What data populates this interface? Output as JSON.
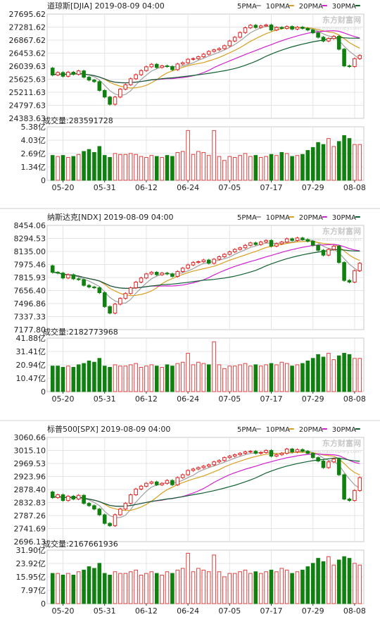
{
  "watermark": "东方财富网 www.eastmoney.com",
  "colors": {
    "up": "#e02020",
    "down": "#108010",
    "volume_up": "#e04040",
    "volume_down": "#108010",
    "ma5": "#a0a0a0",
    "ma10": "#d8a020",
    "ma20": "#d020d0",
    "ma30": "#106030",
    "grid": "#e4e4e4",
    "axis": "#404040",
    "text": "#222222",
    "frame": "#c8c8c8"
  },
  "chart_data": [
    {
      "type": "candlestick",
      "title": "道琼斯[DJIA] 2019-08-09 04:00",
      "legend": [
        {
          "name": "5PMA",
          "color": "#a0a0a0"
        },
        {
          "name": "10PMA",
          "color": "#d8a020"
        },
        {
          "name": "20PMA",
          "color": "#d020d0"
        },
        {
          "name": "30PMA",
          "color": "#106030"
        }
      ],
      "yticks": [
        "27695.62",
        "27281.62",
        "26867.62",
        "26453.62",
        "26039.63",
        "25625.63",
        "25211.63",
        "24797.63",
        "24383.63"
      ],
      "ylim": [
        24383.63,
        27695.62
      ],
      "volume_label": "成交量:283591728",
      "volume_yticks": [
        "5.38亿",
        "4.03亿",
        "2.69亿",
        "1.34亿",
        "0"
      ],
      "volume_ylim": [
        0,
        5.38
      ],
      "xticks": [
        "05-20",
        "05-31",
        "06-12",
        "06-24",
        "07-05",
        "07-17",
        "07-29",
        "08-08"
      ],
      "xtick_index": [
        2,
        10,
        18,
        26,
        34,
        42,
        50,
        58
      ],
      "start": 25980,
      "closes": [
        25760,
        25840,
        25720,
        25850,
        25780,
        25890,
        25690,
        25600,
        25550,
        25270,
        25060,
        24830,
        25060,
        25310,
        25450,
        25640,
        25770,
        25900,
        26020,
        26100,
        26000,
        26050,
        26030,
        25930,
        26110,
        26150,
        26260,
        26280,
        26340,
        26420,
        26510,
        26560,
        26600,
        26690,
        26840,
        26960,
        27110,
        27260,
        27340,
        27270,
        27320,
        27350,
        27190,
        27270,
        27240,
        27300,
        27220,
        27280,
        27240,
        27190,
        27100,
        26960,
        26840,
        26920,
        26990,
        26580,
        26050,
        26030,
        26280,
        26380
      ],
      "volumes": [
        2.5,
        2.4,
        2.5,
        2.3,
        2.4,
        2.6,
        2.9,
        3.1,
        2.8,
        3.4,
        2.5,
        2.3,
        2.7,
        2.6,
        2.6,
        2.7,
        2.6,
        2.4,
        2.3,
        2.5,
        2.4,
        2.3,
        2.5,
        2.4,
        2.8,
        2.9,
        5.0,
        2.6,
        2.9,
        2.8,
        2.5,
        5.0,
        2.4,
        2.0,
        2.4,
        2.3,
        2.5,
        2.7,
        2.4,
        2.5,
        2.3,
        2.4,
        2.6,
        2.5,
        2.8,
        2.7,
        2.4,
        2.5,
        2.6,
        3.0,
        3.3,
        3.8,
        3.6,
        4.2,
        3.4,
        3.9,
        4.5,
        4.2,
        3.6,
        3.6
      ]
    },
    {
      "type": "candlestick",
      "title": "纳斯达克[NDX] 2019-08-09 04:00",
      "legend": [
        {
          "name": "5PMA",
          "color": "#a0a0a0"
        },
        {
          "name": "10PMA",
          "color": "#d8a020"
        },
        {
          "name": "20PMA",
          "color": "#d020d0"
        },
        {
          "name": "30PMA",
          "color": "#106030"
        }
      ],
      "yticks": [
        "8454.06",
        "8294.53",
        "8135.00",
        "7975.46",
        "7815.93",
        "7656.40",
        "7496.86",
        "7337.33",
        "7177.80"
      ],
      "ylim": [
        7177.8,
        8454.06
      ],
      "volume_label": "成交量:2182773968",
      "volume_yticks": [
        "41.88亿",
        "31.41亿",
        "20.94亿",
        "10.47亿",
        "0"
      ],
      "volume_ylim": [
        0,
        41.88
      ],
      "xticks": [
        "05-20",
        "05-31",
        "06-12",
        "06-24",
        "07-05",
        "07-17",
        "07-29",
        "08-08"
      ],
      "xtick_index": [
        2,
        10,
        18,
        26,
        34,
        42,
        50,
        58
      ],
      "start": 7960,
      "closes": [
        7880,
        7870,
        7810,
        7850,
        7800,
        7790,
        7720,
        7700,
        7690,
        7630,
        7460,
        7380,
        7490,
        7560,
        7620,
        7690,
        7760,
        7810,
        7860,
        7880,
        7850,
        7870,
        7860,
        7830,
        7890,
        7930,
        7970,
        8000,
        8010,
        8030,
        7990,
        8040,
        8070,
        8100,
        8130,
        8160,
        8180,
        8210,
        8240,
        8220,
        8250,
        8270,
        8200,
        8230,
        8250,
        8290,
        8270,
        8300,
        8280,
        8260,
        8210,
        8150,
        8090,
        8160,
        8200,
        8000,
        7780,
        7760,
        7900,
        7990
      ],
      "volumes": [
        20,
        20,
        19,
        20,
        19,
        21,
        22,
        24,
        23,
        26,
        20,
        19,
        21,
        20,
        20,
        21,
        22,
        19,
        20,
        21,
        20,
        19,
        21,
        20,
        22,
        23,
        30,
        21,
        23,
        22,
        21,
        39,
        21,
        18,
        20,
        20,
        21,
        22,
        20,
        21,
        20,
        21,
        22,
        21,
        23,
        22,
        20,
        21,
        22,
        24,
        26,
        29,
        27,
        30,
        25,
        28,
        30,
        29,
        26,
        26
      ]
    },
    {
      "type": "candlestick",
      "title": "标普500[SPX] 2019-08-09 04:00",
      "legend": [
        {
          "name": "5PMA",
          "color": "#a0a0a0"
        },
        {
          "name": "10PMA",
          "color": "#d8a020"
        },
        {
          "name": "20PMA",
          "color": "#d020d0"
        },
        {
          "name": "30PMA",
          "color": "#106030"
        }
      ],
      "yticks": [
        "3060.66",
        "3015.10",
        "2969.53",
        "2923.96",
        "2878.40",
        "2832.83",
        "2787.26",
        "2741.69",
        "2696.13"
      ],
      "ylim": [
        2696.13,
        3060.66
      ],
      "volume_label": "成交量:2167661936",
      "volume_yticks": [
        "31.90亿",
        "23.92亿",
        "15.95亿",
        "7.97亿",
        "0"
      ],
      "volume_ylim": [
        0,
        31.9
      ],
      "xticks": [
        "05-20",
        "05-31",
        "06-12",
        "06-24",
        "07-05",
        "07-17",
        "07-29",
        "08-08"
      ],
      "xtick_index": [
        2,
        10,
        18,
        26,
        34,
        42,
        50,
        58
      ],
      "start": 2870,
      "closes": [
        2850,
        2860,
        2840,
        2855,
        2845,
        2858,
        2830,
        2822,
        2810,
        2790,
        2760,
        2752,
        2790,
        2810,
        2830,
        2860,
        2880,
        2890,
        2900,
        2905,
        2895,
        2900,
        2910,
        2895,
        2920,
        2930,
        2945,
        2950,
        2955,
        2960,
        2965,
        2975,
        2980,
        2990,
        2995,
        3000,
        3005,
        3010,
        3012,
        3005,
        3008,
        3015,
        2995,
        3000,
        3005,
        3020,
        3010,
        3018,
        3012,
        3005,
        2990,
        2978,
        2955,
        2975,
        2985,
        2930,
        2845,
        2840,
        2875,
        2920
      ],
      "volumes": [
        18,
        18,
        17,
        18,
        17,
        19,
        20,
        22,
        21,
        24,
        18,
        17,
        19,
        18,
        18,
        19,
        20,
        17,
        18,
        19,
        18,
        17,
        19,
        18,
        20,
        21,
        30,
        19,
        21,
        20,
        19,
        29,
        19,
        16,
        18,
        18,
        19,
        20,
        18,
        19,
        18,
        19,
        20,
        19,
        21,
        20,
        18,
        19,
        20,
        22,
        24,
        27,
        25,
        28,
        23,
        26,
        28,
        27,
        24,
        23
      ]
    }
  ]
}
